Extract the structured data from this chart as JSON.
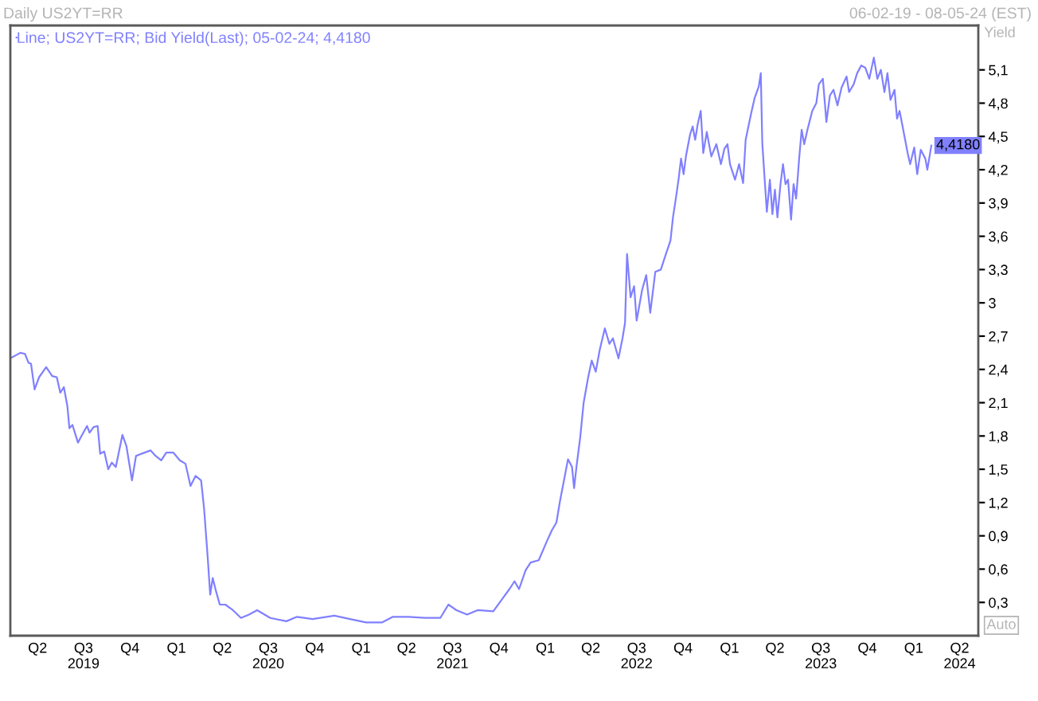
{
  "chart_data": {
    "type": "line",
    "title": "Daily US2YT=RR",
    "subtitle": "06-02-19 - 08-05-24 (EST)",
    "ylabel": "Yield",
    "x": [
      "2019-02-06",
      "2019-02-26",
      "2019-03-07",
      "2019-03-14",
      "2019-03-19",
      "2019-03-26",
      "2019-04-04",
      "2019-04-18",
      "2019-04-30",
      "2019-05-09",
      "2019-05-16",
      "2019-05-23",
      "2019-05-30",
      "2019-06-03",
      "2019-06-09",
      "2019-06-20",
      "2019-06-27",
      "2019-07-08",
      "2019-07-13",
      "2019-07-21",
      "2019-07-29",
      "2019-08-03",
      "2019-08-11",
      "2019-08-19",
      "2019-08-26",
      "2019-09-03",
      "2019-09-16",
      "2019-09-24",
      "2019-10-05",
      "2019-10-13",
      "2019-10-24",
      "2019-11-11",
      "2019-11-21",
      "2019-12-02",
      "2019-12-12",
      "2019-12-26",
      "2020-01-08",
      "2020-01-19",
      "2020-01-29",
      "2020-02-08",
      "2020-02-19",
      "2020-02-25",
      "2020-03-03",
      "2020-03-08",
      "2020-03-13",
      "2020-03-19",
      "2020-03-27",
      "2020-04-07",
      "2020-04-22",
      "2020-05-08",
      "2020-05-24",
      "2020-06-09",
      "2020-07-05",
      "2020-08-06",
      "2020-08-27",
      "2020-09-27",
      "2020-11-09",
      "2020-12-10",
      "2021-01-11",
      "2021-02-12",
      "2021-03-05",
      "2021-04-05",
      "2021-05-07",
      "2021-06-07",
      "2021-06-23",
      "2021-07-09",
      "2021-07-30",
      "2021-08-20",
      "2021-09-20",
      "2021-10-06",
      "2021-10-22",
      "2021-11-01",
      "2021-11-10",
      "2021-11-23",
      "2021-12-03",
      "2021-12-19",
      "2022-01-04",
      "2022-01-14",
      "2022-01-23",
      "2022-01-30",
      "2022-02-07",
      "2022-02-15",
      "2022-02-23",
      "2022-02-27",
      "2022-03-04",
      "2022-03-11",
      "2022-03-18",
      "2022-03-27",
      "2022-04-03",
      "2022-04-11",
      "2022-04-19",
      "2022-04-29",
      "2022-05-08",
      "2022-05-15",
      "2022-05-26",
      "2022-06-03",
      "2022-06-08",
      "2022-06-12",
      "2022-06-19",
      "2022-06-26",
      "2022-07-01",
      "2022-07-12",
      "2022-07-20",
      "2022-07-28",
      "2022-08-07",
      "2022-08-18",
      "2022-08-28",
      "2022-09-06",
      "2022-09-11",
      "2022-09-16",
      "2022-09-22",
      "2022-09-27",
      "2022-10-02",
      "2022-10-07",
      "2022-10-15",
      "2022-10-20",
      "2022-10-25",
      "2022-10-30",
      "2022-11-05",
      "2022-11-10",
      "2022-11-17",
      "2022-11-26",
      "2022-12-06",
      "2022-12-15",
      "2022-12-22",
      "2022-12-28",
      "2023-01-02",
      "2023-01-12",
      "2023-01-20",
      "2023-01-28",
      "2023-02-02",
      "2023-02-13",
      "2023-02-20",
      "2023-02-28",
      "2023-03-04",
      "2023-03-07",
      "2023-03-11",
      "2023-03-16",
      "2023-03-22",
      "2023-03-27",
      "2023-04-01",
      "2023-04-06",
      "2023-04-12",
      "2023-04-17",
      "2023-04-22",
      "2023-04-27",
      "2023-05-03",
      "2023-05-08",
      "2023-05-13",
      "2023-05-19",
      "2023-05-24",
      "2023-05-29",
      "2023-06-05",
      "2023-06-14",
      "2023-06-22",
      "2023-06-27",
      "2023-07-05",
      "2023-07-12",
      "2023-07-19",
      "2023-07-26",
      "2023-08-03",
      "2023-08-11",
      "2023-08-21",
      "2023-08-26",
      "2023-09-04",
      "2023-09-11",
      "2023-09-19",
      "2023-09-27",
      "2023-10-05",
      "2023-10-14",
      "2023-10-21",
      "2023-10-28",
      "2023-11-04",
      "2023-11-10",
      "2023-11-16",
      "2023-11-24",
      "2023-11-29",
      "2023-12-04",
      "2023-12-10",
      "2023-12-15",
      "2023-12-20",
      "2023-12-25",
      "2024-01-02",
      "2024-01-08",
      "2024-01-15",
      "2024-01-24",
      "2024-01-28",
      "2024-02-05"
    ],
    "series": [
      {
        "name": "Line; US2YT=RR; Bid Yield(Last); 05-02-24; 4,4180",
        "color": "#8080ff",
        "values": [
          2.5,
          2.55,
          2.54,
          2.46,
          2.45,
          2.22,
          2.33,
          2.42,
          2.34,
          2.33,
          2.19,
          2.24,
          2.07,
          1.87,
          1.9,
          1.74,
          1.8,
          1.89,
          1.83,
          1.88,
          1.89,
          1.64,
          1.66,
          1.5,
          1.56,
          1.52,
          1.81,
          1.71,
          1.4,
          1.62,
          1.64,
          1.67,
          1.62,
          1.58,
          1.65,
          1.65,
          1.58,
          1.55,
          1.35,
          1.44,
          1.4,
          1.14,
          0.71,
          0.37,
          0.52,
          0.41,
          0.28,
          0.28,
          0.23,
          0.16,
          0.19,
          0.23,
          0.16,
          0.13,
          0.17,
          0.15,
          0.18,
          0.15,
          0.12,
          0.12,
          0.17,
          0.17,
          0.16,
          0.16,
          0.28,
          0.23,
          0.19,
          0.23,
          0.22,
          0.32,
          0.42,
          0.49,
          0.42,
          0.59,
          0.66,
          0.68,
          0.85,
          0.95,
          1.02,
          1.21,
          1.4,
          1.59,
          1.52,
          1.33,
          1.53,
          1.78,
          2.1,
          2.33,
          2.48,
          2.38,
          2.58,
          2.77,
          2.63,
          2.68,
          2.5,
          2.68,
          2.82,
          3.44,
          3.05,
          3.15,
          2.84,
          3.12,
          3.25,
          2.91,
          3.28,
          3.3,
          3.44,
          3.56,
          3.77,
          3.92,
          4.11,
          4.3,
          4.16,
          4.33,
          4.52,
          4.59,
          4.47,
          4.61,
          4.73,
          4.35,
          4.54,
          4.32,
          4.43,
          4.25,
          4.39,
          4.43,
          4.25,
          4.11,
          4.25,
          4.08,
          4.47,
          4.71,
          4.85,
          4.95,
          5.07,
          4.44,
          4.16,
          3.82,
          4.11,
          3.8,
          4.02,
          3.77,
          4.07,
          4.25,
          4.07,
          4.11,
          3.75,
          4.07,
          3.94,
          4.3,
          4.56,
          4.43,
          4.57,
          4.73,
          4.8,
          4.97,
          5.02,
          4.63,
          4.87,
          4.92,
          4.78,
          4.94,
          5.04,
          4.9,
          4.97,
          5.07,
          5.14,
          5.12,
          5.02,
          5.21,
          5.02,
          5.1,
          4.9,
          5.07,
          4.83,
          4.92,
          4.66,
          4.73,
          4.59,
          4.47,
          4.35,
          4.25,
          4.4,
          4.16,
          4.38,
          4.3,
          4.2,
          4.418
        ]
      }
    ],
    "xlim": [
      "2019-02-06",
      "2024-05-08"
    ],
    "xticks": [
      {
        "value": "2019-04-01",
        "label": "Q2"
      },
      {
        "value": "2019-07-01",
        "label": "Q3\n2019"
      },
      {
        "value": "2019-10-01",
        "label": "Q4"
      },
      {
        "value": "2020-01-01",
        "label": "Q1"
      },
      {
        "value": "2020-04-01",
        "label": "Q2"
      },
      {
        "value": "2020-07-01",
        "label": "Q3\n2020"
      },
      {
        "value": "2020-10-01",
        "label": "Q4"
      },
      {
        "value": "2021-01-01",
        "label": "Q1"
      },
      {
        "value": "2021-04-01",
        "label": "Q2"
      },
      {
        "value": "2021-07-01",
        "label": "Q3\n2021"
      },
      {
        "value": "2021-10-01",
        "label": "Q4"
      },
      {
        "value": "2022-01-01",
        "label": "Q1"
      },
      {
        "value": "2022-04-01",
        "label": "Q2"
      },
      {
        "value": "2022-07-01",
        "label": "Q3\n2022"
      },
      {
        "value": "2022-10-01",
        "label": "Q4"
      },
      {
        "value": "2023-01-01",
        "label": "Q1"
      },
      {
        "value": "2023-04-01",
        "label": "Q2"
      },
      {
        "value": "2023-07-01",
        "label": "Q3\n2023"
      },
      {
        "value": "2023-10-01",
        "label": "Q4"
      },
      {
        "value": "2024-01-01",
        "label": "Q1"
      },
      {
        "value": "2024-04-01",
        "label": "Q2\n2024"
      }
    ],
    "ylim": [
      0,
      5.5
    ],
    "yticks": [
      {
        "value": 0.3,
        "label": "0,3"
      },
      {
        "value": 0.6,
        "label": "0,6"
      },
      {
        "value": 0.9,
        "label": "0,9"
      },
      {
        "value": 1.2,
        "label": "1,2"
      },
      {
        "value": 1.5,
        "label": "1,5"
      },
      {
        "value": 1.8,
        "label": "1,8"
      },
      {
        "value": 2.1,
        "label": "2,1"
      },
      {
        "value": 2.4,
        "label": "2,4"
      },
      {
        "value": 2.7,
        "label": "2,7"
      },
      3,
      {
        "value": 3.3,
        "label": "3,3"
      },
      {
        "value": 3.6,
        "label": "3,6"
      },
      {
        "value": 3.9,
        "label": "3,9"
      },
      {
        "value": 4.2,
        "label": "4,2"
      },
      {
        "value": 4.5,
        "label": "4,5"
      },
      {
        "value": 4.8,
        "label": "4,8"
      },
      {
        "value": 5.1,
        "label": "5,1"
      }
    ],
    "annotations": [
      {
        "text": "4,4180",
        "x": "2024-02-05",
        "y": 4.418
      },
      "Auto"
    ],
    "legend": "top left",
    "marker": "none",
    "line_style": "solid"
  }
}
